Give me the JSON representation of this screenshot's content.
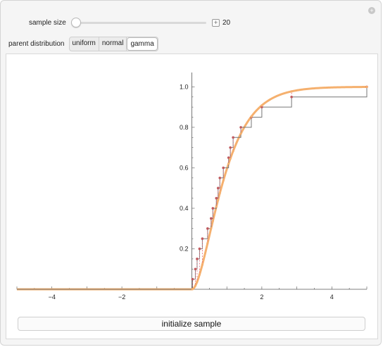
{
  "controls": {
    "sample_size_label": "sample size",
    "sample_size_value": "20",
    "slider_fraction": 0.0,
    "parent_label": "parent distribution",
    "distributions": [
      "uniform",
      "normal",
      "gamma"
    ],
    "selected_distribution": "gamma",
    "add_icon": "plus-icon"
  },
  "button": {
    "label": "initialize sample"
  },
  "chart_data": {
    "type": "line",
    "xlim": [
      -5,
      5
    ],
    "ylim": [
      0,
      1.05
    ],
    "xticks": [
      -4,
      -2,
      2,
      4
    ],
    "xtick_labels": [
      "−4",
      "−2",
      "2",
      "4"
    ],
    "yticks": [
      0.2,
      0.4,
      0.6,
      0.8,
      1.0
    ],
    "ytick_labels": [
      "0.2",
      "0.4",
      "0.6",
      "0.8",
      "1.0"
    ],
    "sample": [
      0.02,
      0.1,
      0.15,
      0.22,
      0.3,
      0.45,
      0.55,
      0.6,
      0.7,
      0.75,
      0.8,
      0.9,
      1.05,
      1.1,
      1.18,
      1.4,
      1.7,
      2.0,
      2.85,
      5.0
    ],
    "cdf_color": "#f5b06e",
    "ecdf_color": "#777777",
    "point_color": "#c0595e",
    "diff_color": "#e56a7a"
  }
}
